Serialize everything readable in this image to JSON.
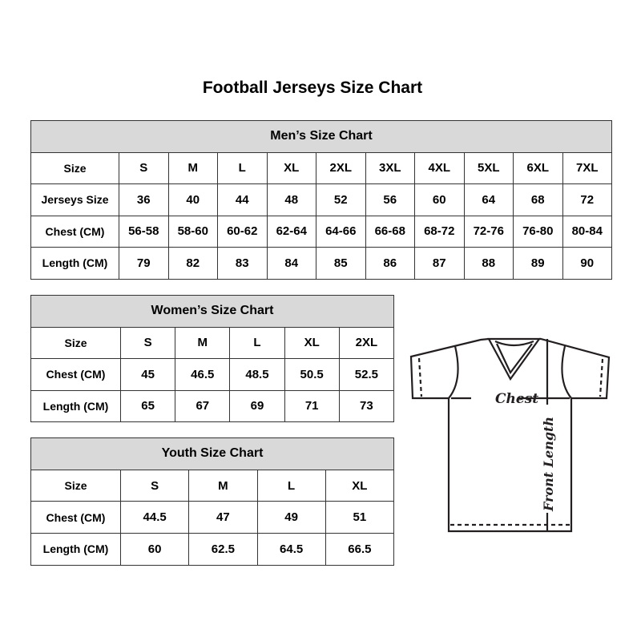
{
  "title": "Football Jerseys Size Chart",
  "men": {
    "title": "Men’s Size Chart",
    "rows": [
      [
        "Size",
        "S",
        "M",
        "L",
        "XL",
        "2XL",
        "3XL",
        "4XL",
        "5XL",
        "6XL",
        "7XL"
      ],
      [
        "Jerseys Size",
        "36",
        "40",
        "44",
        "48",
        "52",
        "56",
        "60",
        "64",
        "68",
        "72"
      ],
      [
        "Chest (CM)",
        "56-58",
        "58-60",
        "60-62",
        "62-64",
        "64-66",
        "66-68",
        "68-72",
        "72-76",
        "76-80",
        "80-84"
      ],
      [
        "Length (CM)",
        "79",
        "82",
        "83",
        "84",
        "85",
        "86",
        "87",
        "88",
        "89",
        "90"
      ]
    ]
  },
  "women": {
    "title": "Women’s Size Chart",
    "rows": [
      [
        "Size",
        "S",
        "M",
        "L",
        "XL",
        "2XL"
      ],
      [
        "Chest (CM)",
        "45",
        "46.5",
        "48.5",
        "50.5",
        "52.5"
      ],
      [
        "Length (CM)",
        "65",
        "67",
        "69",
        "71",
        "73"
      ]
    ]
  },
  "youth": {
    "title": "Youth Size Chart",
    "rows": [
      [
        "Size",
        "S",
        "M",
        "L",
        "XL"
      ],
      [
        "Chest (CM)",
        "44.5",
        "47",
        "49",
        "51"
      ],
      [
        "Length (CM)",
        "60",
        "62.5",
        "64.5",
        "66.5"
      ]
    ]
  },
  "diagram": {
    "chest": "Chest",
    "length": "Front Length"
  }
}
